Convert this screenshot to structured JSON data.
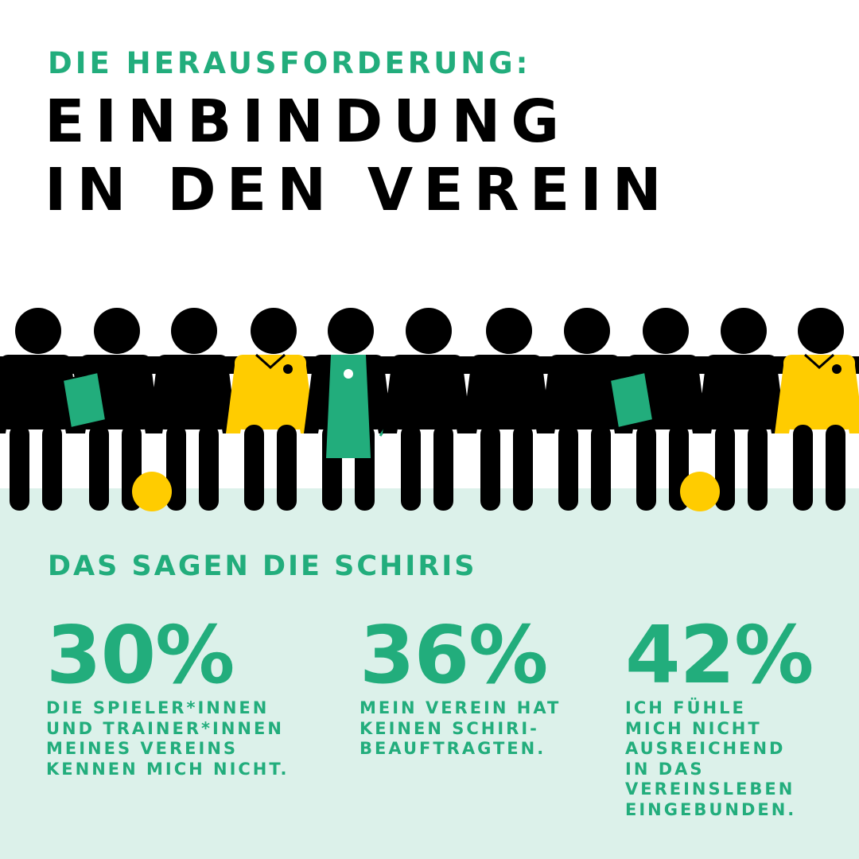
{
  "header": {
    "kicker": "DIE HERAUSFORDERUNG:",
    "headline_line1": "EINBINDUNG",
    "headline_line2": "IN DEN VEREIN"
  },
  "colors": {
    "green": "#22ad7c",
    "yellow": "#ffcc00",
    "black": "#000000",
    "panel": "#dcf1ea"
  },
  "illustration": {
    "figures": [
      {
        "role": "figure"
      },
      {
        "role": "figure-with-clipboard"
      },
      {
        "role": "figure"
      },
      {
        "role": "figure-in-yellow-jersey"
      },
      {
        "role": "figure-with-apron-and-sausage"
      },
      {
        "role": "figure"
      },
      {
        "role": "figure"
      },
      {
        "role": "figure"
      },
      {
        "role": "figure-with-clipboard"
      },
      {
        "role": "figure"
      },
      {
        "role": "figure-in-yellow-jersey"
      }
    ]
  },
  "section_title": "DAS SAGEN DIE SCHIRIS",
  "stats": [
    {
      "value": "30%",
      "text": "DIE SPIELER*INNEN\nUND TRAINER*INNEN\nMEINES VEREINS\nKENNEN MICH NICHT."
    },
    {
      "value": "36%",
      "text": "MEIN VEREIN HAT\nKEINEN SCHIRI-\nBEAUFTRAGTEN."
    },
    {
      "value": "42%",
      "text": "ICH FÜHLE\nMICH NICHT\nAUSREICHEND\nIN DAS\nVEREINSLEBEN\nEINGEBUNDEN."
    }
  ]
}
